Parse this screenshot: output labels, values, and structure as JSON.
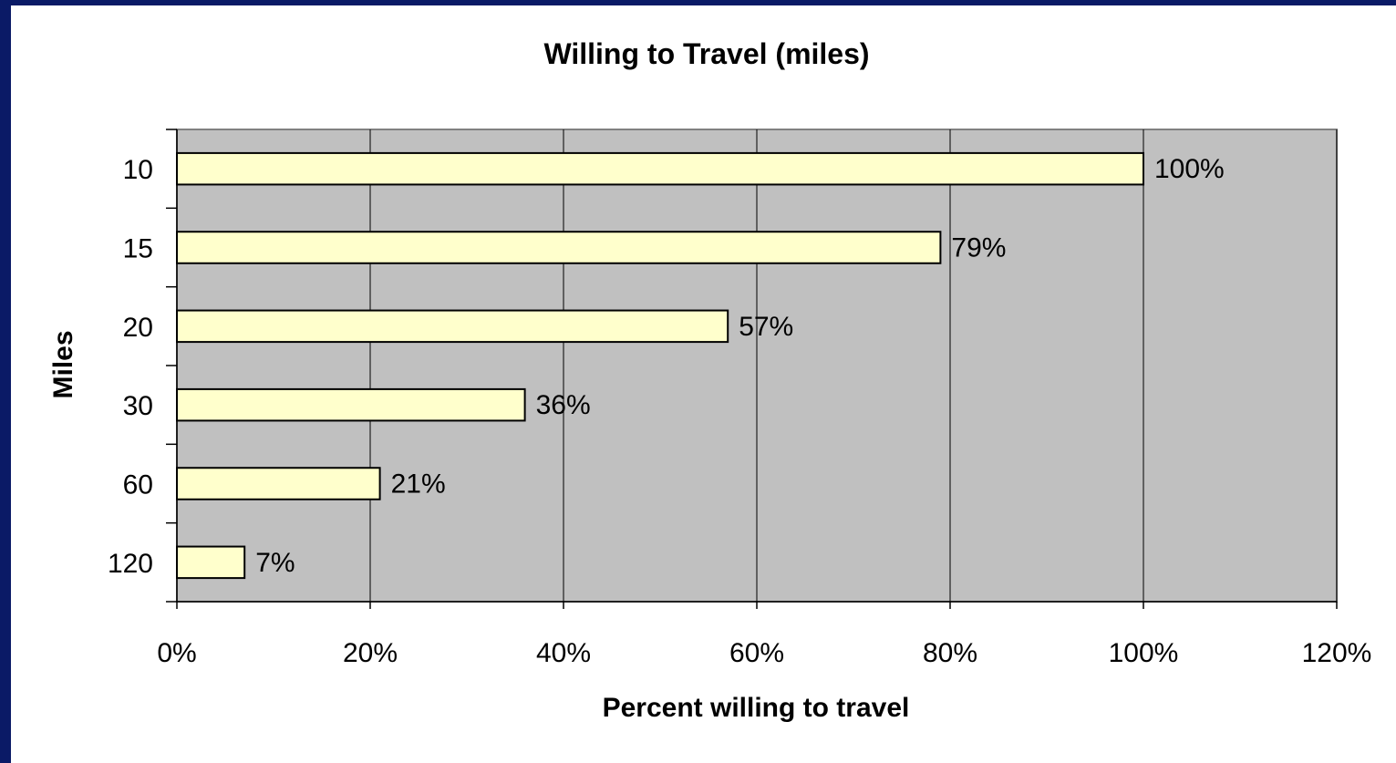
{
  "chart_data": {
    "type": "bar",
    "orientation": "horizontal",
    "title": "Willing to Travel (miles)",
    "xlabel": "Percent willing to travel",
    "ylabel": "Miles",
    "categories": [
      "10",
      "15",
      "20",
      "30",
      "60",
      "120"
    ],
    "values": [
      100,
      79,
      57,
      36,
      21,
      7
    ],
    "data_labels": [
      "100%",
      "79%",
      "57%",
      "36%",
      "21%",
      "7%"
    ],
    "xlim": [
      0,
      120
    ],
    "xticks": [
      0,
      20,
      40,
      60,
      80,
      100,
      120
    ],
    "xtick_labels": [
      "0%",
      "20%",
      "40%",
      "60%",
      "80%",
      "100%",
      "120%"
    ],
    "grid": "vertical",
    "legend": "none",
    "colors": {
      "frame": "#0a1a66",
      "plot_background": "#c0c0c0",
      "bar_fill": "#ffffcc",
      "bar_stroke": "#000000",
      "grid": "#000000"
    }
  }
}
